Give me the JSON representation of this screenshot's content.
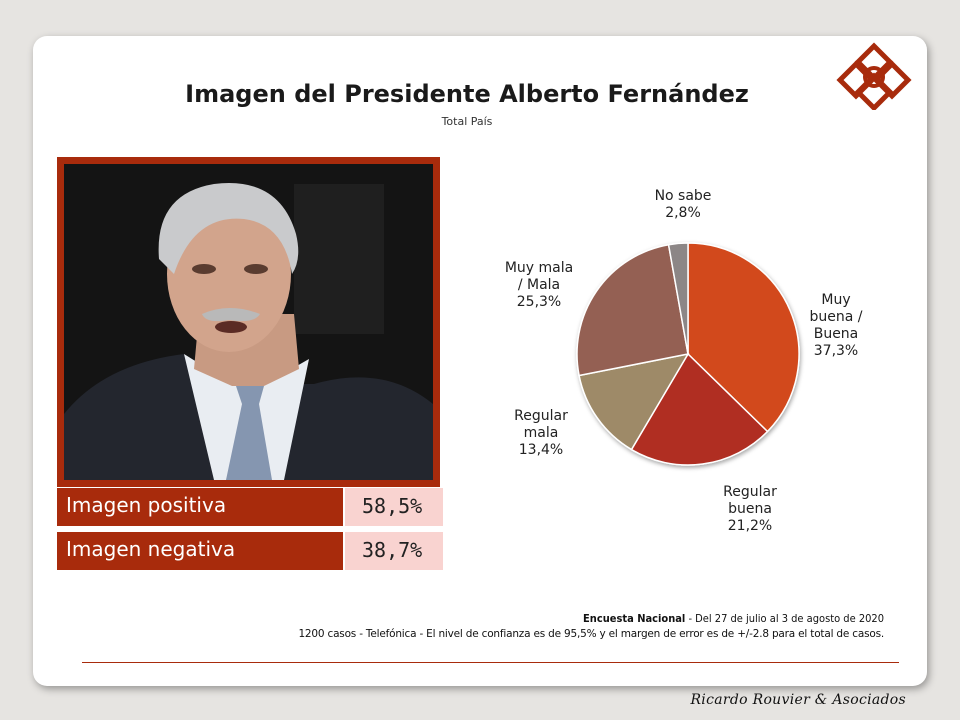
{
  "header": {
    "title": "Imagen del Presidente Alberto Fernández",
    "subtitle": "Total País"
  },
  "stats": [
    {
      "label": "Imagen positiva",
      "value": "58,5%"
    },
    {
      "label": "Imagen negativa",
      "value": "38,7%"
    }
  ],
  "chart_data": {
    "type": "pie",
    "title": "",
    "slices": [
      {
        "label_lines": [
          "Muy",
          "buena /",
          "Buena"
        ],
        "label": "Muy buena / Buena",
        "value": 37.3,
        "value_label": "37,3%",
        "color": "#d24a1c"
      },
      {
        "label_lines": [
          "Regular",
          "buena"
        ],
        "label": "Regular buena",
        "value": 21.2,
        "value_label": "21,2%",
        "color": "#b02e21"
      },
      {
        "label_lines": [
          "Regular",
          "mala"
        ],
        "label": "Regular mala",
        "value": 13.4,
        "value_label": "13,4%",
        "color": "#9e8a68"
      },
      {
        "label_lines": [
          "Muy mala",
          "/ Mala"
        ],
        "label": "Muy mala / Mala",
        "value": 25.3,
        "value_label": "25,3%",
        "color": "#946052"
      },
      {
        "label_lines": [
          "No sabe"
        ],
        "label": "No sabe",
        "value": 2.8,
        "value_label": "2,8%",
        "color": "#8c8686"
      }
    ]
  },
  "footer": {
    "survey_name": "Encuesta Nacional",
    "survey_dates": " - Del 27 de julio al 3 de agosto de 2020",
    "methodology": "1200 casos - Telefónica  - El nivel de confianza es de 95,5% y el margen de error es de +/-2.8 para el total de casos.",
    "brand": "Ricardo Rouvier & Asociados"
  },
  "colors": {
    "accent": "#a82b0c",
    "value_bg": "#f9d3d0"
  }
}
